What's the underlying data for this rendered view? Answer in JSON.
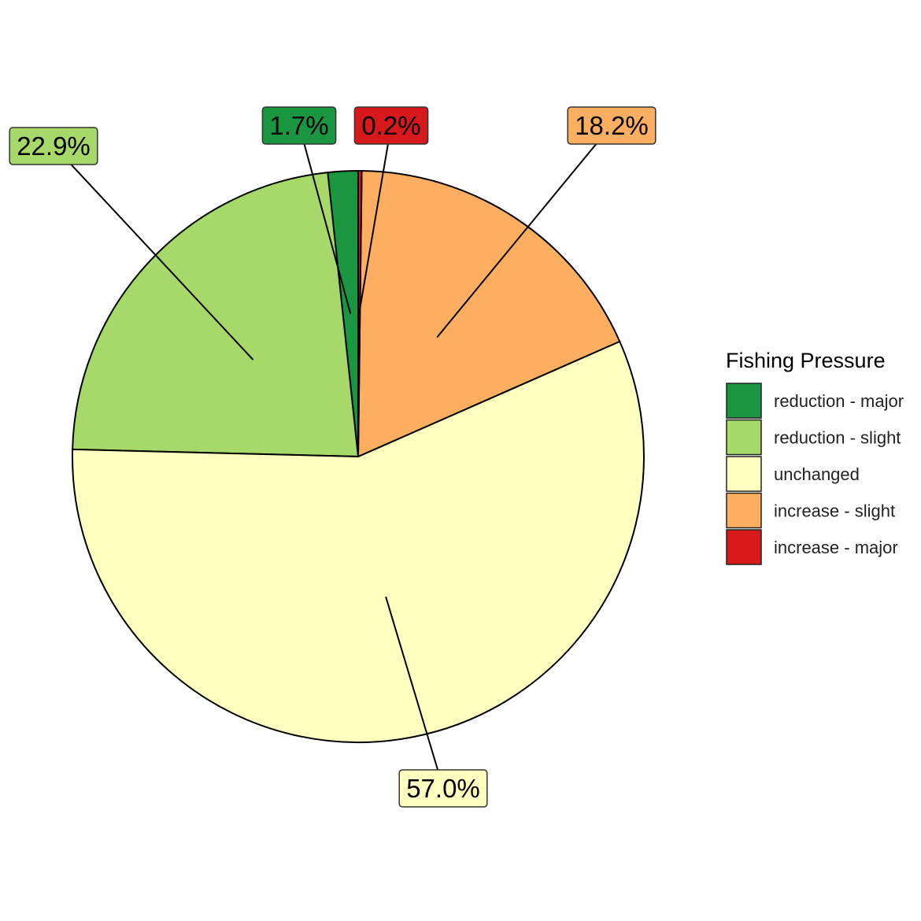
{
  "chart_data": {
    "type": "pie",
    "legend_title": "Fishing Pressure",
    "legend_position": "right",
    "slices": [
      {
        "name": "reduction - major",
        "value": 1.7,
        "label": "1.7%",
        "color": "#1a9641"
      },
      {
        "name": "reduction - slight",
        "value": 22.9,
        "label": "22.9%",
        "color": "#a6d96a"
      },
      {
        "name": "unchanged",
        "value": 57.0,
        "label": "57.0%",
        "color": "#ffffc0"
      },
      {
        "name": "increase - slight",
        "value": 18.2,
        "label": "18.2%",
        "color": "#fdae61"
      },
      {
        "name": "increase - major",
        "value": 0.2,
        "label": "0.2%",
        "color": "#d7191c"
      }
    ]
  }
}
